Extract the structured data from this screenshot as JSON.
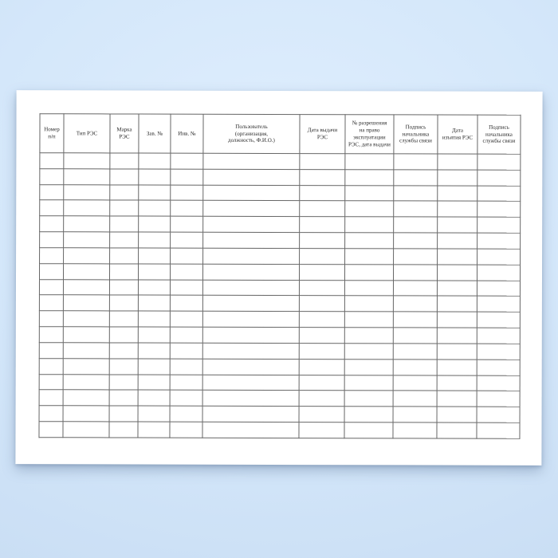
{
  "canvas": {
    "background_top": "#dfeefd",
    "background_bottom": "#c6dbf2"
  },
  "page": {
    "background": "#ffffff"
  },
  "table": {
    "grid_color": "#666666",
    "text_color": "#2b2b2b",
    "row_count": 18,
    "columns": [
      {
        "key": "row-number",
        "label": "Номер\nп/п"
      },
      {
        "key": "res-type",
        "label": "Тип РЭС"
      },
      {
        "key": "res-brand",
        "label": "Марка\nРЭС"
      },
      {
        "key": "factory-number",
        "label": "Зав. №"
      },
      {
        "key": "inventory-number",
        "label": "Инв. №"
      },
      {
        "key": "user",
        "label": "Пользователь\n(организация,\nдолжность, Ф.И.О.)"
      },
      {
        "key": "issue-date",
        "label": "Дата выдачи\nРЭС"
      },
      {
        "key": "permit-number",
        "label": "№ разрешения\nна право\nэксплуатации\nРЭС, дата выдачи"
      },
      {
        "key": "chief-signature-1",
        "label": "Подпись\nначальника\nслужбы связи"
      },
      {
        "key": "withdrawal-date",
        "label": "Дата\nизъятия РЭС"
      },
      {
        "key": "chief-signature-2",
        "label": "Подпись\nначальника\nслужбы связи"
      }
    ],
    "cells_empty": true
  }
}
